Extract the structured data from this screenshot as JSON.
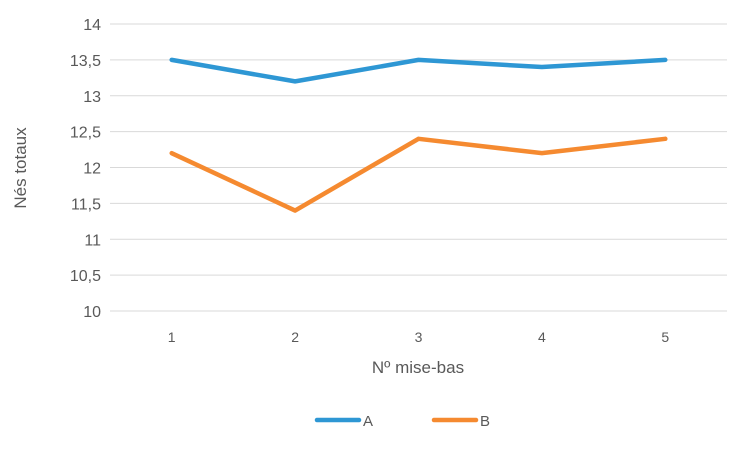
{
  "chart_data": {
    "type": "line",
    "title": "",
    "xlabel": "Nº mise-bas",
    "ylabel": "Nés totaux",
    "categories": [
      "1",
      "2",
      "3",
      "4",
      "5"
    ],
    "ylim": [
      10,
      14
    ],
    "yticks": [
      "10",
      "10,5",
      "11",
      "11,5",
      "12",
      "12,5",
      "13",
      "13,5",
      "14"
    ],
    "grid": true,
    "legend": "bottom",
    "series": [
      {
        "name": "A",
        "color": "#2E97D4",
        "values": [
          13.5,
          13.2,
          13.5,
          13.4,
          13.5
        ]
      },
      {
        "name": "B",
        "color": "#F58A30",
        "values": [
          12.2,
          11.4,
          12.4,
          12.2,
          12.4
        ]
      }
    ]
  }
}
